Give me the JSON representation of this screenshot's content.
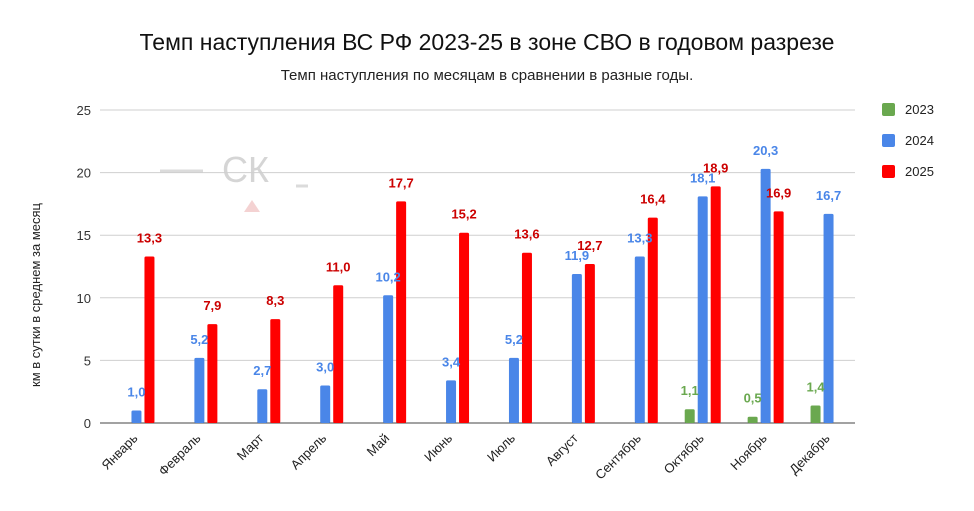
{
  "chart_data": {
    "type": "bar",
    "title": "Темп наступления ВС РФ 2023-25 в зоне СВО в годовом разрезе",
    "subtitle": "Темп наступления по месяцам в сравнении в разные годы.",
    "xlabel": "",
    "ylabel": "км в сутки в среднем за месяц",
    "ylim": [
      0,
      25
    ],
    "yticks": [
      "0",
      "5",
      "10",
      "15",
      "20",
      "25"
    ],
    "grid": true,
    "legend_position": "right",
    "watermark": "СК",
    "categories": [
      "Январь",
      "Февраль",
      "Март",
      "Апрель",
      "Май",
      "Июнь",
      "Июль",
      "Август",
      "Сентябрь",
      "Октябрь",
      "Ноябрь",
      "Декабрь"
    ],
    "series": [
      {
        "name": "2023",
        "color": "#6aa84f",
        "values": [
          null,
          null,
          null,
          null,
          null,
          null,
          null,
          null,
          null,
          1.1,
          0.5,
          1.4
        ],
        "labels": [
          "",
          "",
          "",
          "",
          "",
          "",
          "",
          "",
          "",
          "1,1",
          "0,5",
          "1,4"
        ]
      },
      {
        "name": "2024",
        "color": "#4a86e8",
        "values": [
          1.0,
          5.2,
          2.7,
          3.0,
          10.2,
          3.4,
          5.2,
          11.9,
          13.3,
          18.1,
          20.3,
          16.7
        ],
        "labels": [
          "1,0",
          "5,2",
          "2,7",
          "3,0",
          "10,2",
          "3,4",
          "5,2",
          "11,9",
          "13,3",
          "18,1",
          "20,3",
          "16,7"
        ]
      },
      {
        "name": "2025",
        "color": "#ff0000",
        "label_color": "#cc0000",
        "values": [
          13.3,
          7.9,
          8.3,
          11.0,
          17.7,
          15.2,
          13.6,
          12.7,
          16.4,
          18.9,
          16.9,
          null
        ],
        "labels": [
          "13,3",
          "7,9",
          "8,3",
          "11,0",
          "17,7",
          "15,2",
          "13,6",
          "12,7",
          "16,4",
          "18,9",
          "16,9",
          ""
        ]
      }
    ]
  }
}
